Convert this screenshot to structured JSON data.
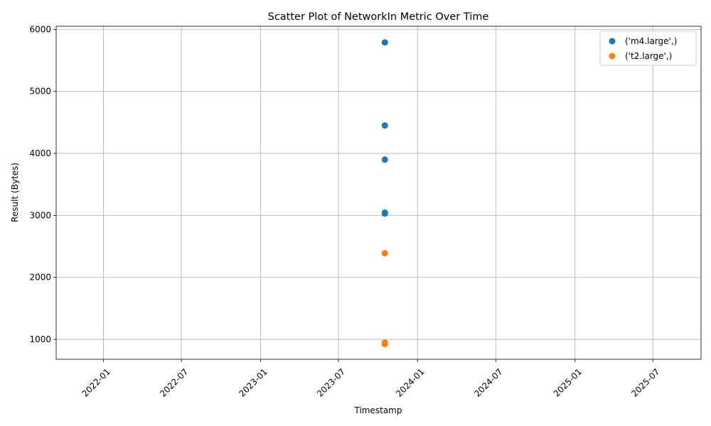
{
  "chart_data": {
    "type": "scatter",
    "title": "Scatter Plot of NetworkIn Metric Over Time",
    "xlabel": "Timestamp",
    "ylabel": "Result (Bytes)",
    "x_axis": {
      "kind": "date",
      "range": [
        "2021-09-13",
        "2025-10-21"
      ],
      "ticks": [
        "2022-01-01",
        "2022-07-01",
        "2023-01-01",
        "2023-07-01",
        "2024-01-01",
        "2024-07-01",
        "2025-01-01",
        "2025-07-01"
      ],
      "tick_labels": [
        "2022-01",
        "2022-07",
        "2023-01",
        "2023-07",
        "2024-01",
        "2024-07",
        "2025-01",
        "2025-07"
      ],
      "tick_rotation": 45
    },
    "y_axis": {
      "range": [
        680,
        6050
      ],
      "ticks": [
        1000,
        2000,
        3000,
        4000,
        5000,
        6000
      ],
      "tick_labels": [
        "1000",
        "2000",
        "3000",
        "4000",
        "5000",
        "6000"
      ]
    },
    "grid": true,
    "legend": "top-right",
    "series": [
      {
        "name": "('m4.large',)",
        "color": "#1f77b4",
        "points": [
          {
            "x": "2023-10-17",
            "y": 5790
          },
          {
            "x": "2023-10-17",
            "y": 4450
          },
          {
            "x": "2023-10-17",
            "y": 3900
          },
          {
            "x": "2023-10-17",
            "y": 3045
          },
          {
            "x": "2023-10-17",
            "y": 3030
          }
        ]
      },
      {
        "name": "('t2.large',)",
        "color": "#ff7f0e",
        "points": [
          {
            "x": "2023-10-17",
            "y": 2390
          },
          {
            "x": "2023-10-17",
            "y": 950
          },
          {
            "x": "2023-10-17",
            "y": 925
          }
        ]
      }
    ]
  }
}
